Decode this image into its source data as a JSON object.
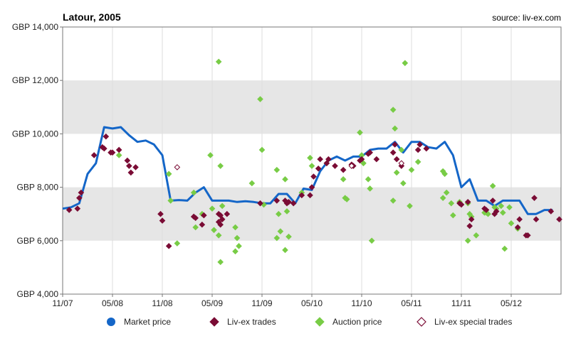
{
  "title": "Latour, 2005",
  "source": "source: liv-ex.com",
  "legend": [
    {
      "label": "Market price",
      "marker": "circle",
      "color": "#1466c8"
    },
    {
      "label": "Liv-ex trades",
      "marker": "diamond",
      "color": "#7a0c35"
    },
    {
      "label": "Auction price",
      "marker": "diamond",
      "color": "#78cc46"
    },
    {
      "label": "Liv-ex special trades",
      "marker": "diamond-outline",
      "color": "#7a0c35"
    }
  ],
  "colors": {
    "market": "#1466c8",
    "trades": "#7a0c35",
    "auction": "#78cc46",
    "special": "#7a0c35",
    "band": "#e6e6e6",
    "grid": "#dddddd",
    "axis": "#777777"
  },
  "chart_data": {
    "type": "line",
    "ylim": [
      4000,
      14000
    ],
    "xlim": [
      "2007-11",
      "2012-11"
    ],
    "x_ticks": [
      "11/07",
      "05/08",
      "11/08",
      "05/09",
      "11/09",
      "05/10",
      "11/10",
      "05/11",
      "11/11",
      "05/12"
    ],
    "y_ticks": [
      {
        "value": 4000,
        "label": "GBP 4,000"
      },
      {
        "value": 6000,
        "label": "GBP 6,000"
      },
      {
        "value": 8000,
        "label": "GBP 8,000"
      },
      {
        "value": 10000,
        "label": "GBP 10,000"
      },
      {
        "value": 12000,
        "label": "GBP 12,000"
      },
      {
        "value": 14000,
        "label": "GBP 14,000"
      }
    ],
    "bands": [
      [
        6000,
        8000
      ],
      [
        10000,
        12000
      ]
    ],
    "series": [
      {
        "name": "Market price",
        "type": "line",
        "points": [
          [
            "2007-11",
            7200
          ],
          [
            "2007-12",
            7250
          ],
          [
            "2008-01",
            7400
          ],
          [
            "2008-02",
            8500
          ],
          [
            "2008-03",
            8900
          ],
          [
            "2008-04",
            10250
          ],
          [
            "2008-05",
            10200
          ],
          [
            "2008-06",
            10250
          ],
          [
            "2008-07",
            9950
          ],
          [
            "2008-08",
            9700
          ],
          [
            "2008-09",
            9750
          ],
          [
            "2008-10",
            9600
          ],
          [
            "2008-11",
            9200
          ],
          [
            "2008-12",
            7500
          ],
          [
            "2009-01",
            7520
          ],
          [
            "2009-02",
            7500
          ],
          [
            "2009-03",
            7800
          ],
          [
            "2009-04",
            8000
          ],
          [
            "2009-05",
            7500
          ],
          [
            "2009-06",
            7500
          ],
          [
            "2009-07",
            7500
          ],
          [
            "2009-08",
            7450
          ],
          [
            "2009-09",
            7480
          ],
          [
            "2009-10",
            7450
          ],
          [
            "2009-11",
            7400
          ],
          [
            "2009-12",
            7400
          ],
          [
            "2010-01",
            7750
          ],
          [
            "2010-02",
            7750
          ],
          [
            "2010-03",
            7400
          ],
          [
            "2010-04",
            7950
          ],
          [
            "2010-05",
            7900
          ],
          [
            "2010-06",
            8600
          ],
          [
            "2010-07",
            9000
          ],
          [
            "2010-08",
            9150
          ],
          [
            "2010-09",
            9000
          ],
          [
            "2010-10",
            9150
          ],
          [
            "2010-11",
            9150
          ],
          [
            "2010-12",
            9400
          ],
          [
            "2011-01",
            9450
          ],
          [
            "2011-02",
            9450
          ],
          [
            "2011-03",
            9700
          ],
          [
            "2011-04",
            9300
          ],
          [
            "2011-05",
            9700
          ],
          [
            "2011-06",
            9700
          ],
          [
            "2011-07",
            9500
          ],
          [
            "2011-08",
            9450
          ],
          [
            "2011-09",
            9700
          ],
          [
            "2011-10",
            9200
          ],
          [
            "2011-11",
            8000
          ],
          [
            "2011-12",
            8300
          ],
          [
            "2012-01",
            7500
          ],
          [
            "2012-02",
            7500
          ],
          [
            "2012-03",
            7300
          ],
          [
            "2012-04",
            7500
          ],
          [
            "2012-05",
            7500
          ],
          [
            "2012-06",
            7500
          ],
          [
            "2012-07",
            7000
          ],
          [
            "2012-08",
            7000
          ],
          [
            "2012-09",
            7150
          ],
          [
            "2012-10",
            7150
          ]
        ]
      },
      {
        "name": "Liv-ex trades",
        "type": "scatter",
        "points": [
          [
            "2007-12",
            7150
          ],
          [
            "2008-01",
            7200
          ],
          [
            "2008-01",
            7600
          ],
          [
            "2008-01",
            7800
          ],
          [
            "2008-03",
            9200
          ],
          [
            "2008-04",
            9500
          ],
          [
            "2008-04",
            9450
          ],
          [
            "2008-04",
            9900
          ],
          [
            "2008-05",
            9300
          ],
          [
            "2008-05",
            9300
          ],
          [
            "2008-06",
            9400
          ],
          [
            "2008-07",
            9000
          ],
          [
            "2008-07",
            8800
          ],
          [
            "2008-07",
            8550
          ],
          [
            "2008-08",
            8750
          ],
          [
            "2008-11",
            7000
          ],
          [
            "2008-11",
            6750
          ],
          [
            "2008-12",
            5800
          ],
          [
            "2009-03",
            6900
          ],
          [
            "2009-03",
            6850
          ],
          [
            "2009-04",
            6600
          ],
          [
            "2009-04",
            6950
          ],
          [
            "2009-06",
            7000
          ],
          [
            "2009-06",
            6950
          ],
          [
            "2009-06",
            6800
          ],
          [
            "2009-06",
            6700
          ],
          [
            "2009-06",
            6600
          ],
          [
            "2009-07",
            7000
          ],
          [
            "2009-11",
            7400
          ],
          [
            "2010-01",
            7500
          ],
          [
            "2010-02",
            7500
          ],
          [
            "2010-02",
            7400
          ],
          [
            "2010-02",
            7450
          ],
          [
            "2010-03",
            7400
          ],
          [
            "2010-04",
            7700
          ],
          [
            "2010-05",
            7700
          ],
          [
            "2010-05",
            8000
          ],
          [
            "2010-05",
            8400
          ],
          [
            "2010-06",
            8700
          ],
          [
            "2010-06",
            9050
          ],
          [
            "2010-07",
            8900
          ],
          [
            "2010-07",
            9050
          ],
          [
            "2010-08",
            8800
          ],
          [
            "2010-09",
            8650
          ],
          [
            "2010-10",
            8850
          ],
          [
            "2010-10",
            8800
          ],
          [
            "2010-11",
            9000
          ],
          [
            "2010-11",
            9050
          ],
          [
            "2010-12",
            9250
          ],
          [
            "2010-12",
            9300
          ],
          [
            "2011-01",
            9050
          ],
          [
            "2011-03",
            9300
          ],
          [
            "2011-03",
            9600
          ],
          [
            "2011-03",
            9050
          ],
          [
            "2011-04",
            8800
          ],
          [
            "2011-06",
            9400
          ],
          [
            "2011-06",
            9600
          ],
          [
            "2011-07",
            9450
          ],
          [
            "2011-11",
            7400
          ],
          [
            "2011-11",
            7350
          ],
          [
            "2011-12",
            7450
          ],
          [
            "2011-12",
            6550
          ],
          [
            "2011-12",
            6800
          ],
          [
            "2012-02",
            7200
          ],
          [
            "2012-02",
            7150
          ],
          [
            "2012-03",
            7500
          ],
          [
            "2012-03",
            7000
          ],
          [
            "2012-03",
            7100
          ],
          [
            "2012-06",
            6500
          ],
          [
            "2012-06",
            6800
          ],
          [
            "2012-07",
            6200
          ],
          [
            "2012-07",
            6200
          ],
          [
            "2012-08",
            7600
          ],
          [
            "2012-08",
            6800
          ],
          [
            "2012-10",
            7100
          ],
          [
            "2012-11",
            6800
          ]
        ]
      },
      {
        "name": "Auction price",
        "type": "scatter",
        "points": [
          [
            "2008-06",
            9200
          ],
          [
            "2008-12",
            8500
          ],
          [
            "2008-12",
            7500
          ],
          [
            "2009-01",
            5900
          ],
          [
            "2009-03",
            7800
          ],
          [
            "2009-03",
            6500
          ],
          [
            "2009-04",
            7000
          ],
          [
            "2009-05",
            9200
          ],
          [
            "2009-05",
            7200
          ],
          [
            "2009-05",
            6400
          ],
          [
            "2009-06",
            12700
          ],
          [
            "2009-06",
            8800
          ],
          [
            "2009-06",
            7300
          ],
          [
            "2009-06",
            6200
          ],
          [
            "2009-06",
            5200
          ],
          [
            "2009-08",
            6500
          ],
          [
            "2009-08",
            6100
          ],
          [
            "2009-08",
            5800
          ],
          [
            "2009-08",
            5600
          ],
          [
            "2009-10",
            8150
          ],
          [
            "2009-11",
            11300
          ],
          [
            "2009-11",
            9400
          ],
          [
            "2009-11",
            7350
          ],
          [
            "2010-01",
            8650
          ],
          [
            "2010-01",
            7000
          ],
          [
            "2010-01",
            6350
          ],
          [
            "2010-01",
            6100
          ],
          [
            "2010-02",
            8300
          ],
          [
            "2010-02",
            7100
          ],
          [
            "2010-02",
            6150
          ],
          [
            "2010-02",
            5650
          ],
          [
            "2010-04",
            7800
          ],
          [
            "2010-05",
            9100
          ],
          [
            "2010-05",
            8800
          ],
          [
            "2010-07",
            8900
          ],
          [
            "2010-09",
            8300
          ],
          [
            "2010-09",
            7600
          ],
          [
            "2010-09",
            7550
          ],
          [
            "2010-11",
            10050
          ],
          [
            "2010-11",
            9200
          ],
          [
            "2010-11",
            8900
          ],
          [
            "2010-12",
            8300
          ],
          [
            "2010-12",
            7950
          ],
          [
            "2010-12",
            6000
          ],
          [
            "2011-03",
            10900
          ],
          [
            "2011-03",
            10200
          ],
          [
            "2011-03",
            8550
          ],
          [
            "2011-03",
            7500
          ],
          [
            "2011-04",
            9400
          ],
          [
            "2011-04",
            8150
          ],
          [
            "2011-04",
            12650
          ],
          [
            "2011-05",
            7300
          ],
          [
            "2011-05",
            8650
          ],
          [
            "2011-06",
            8950
          ],
          [
            "2011-09",
            8600
          ],
          [
            "2011-09",
            8500
          ],
          [
            "2011-09",
            7800
          ],
          [
            "2011-09",
            7600
          ],
          [
            "2011-10",
            7400
          ],
          [
            "2011-10",
            6950
          ],
          [
            "2011-11",
            7450
          ],
          [
            "2011-12",
            7400
          ],
          [
            "2011-12",
            7000
          ],
          [
            "2011-12",
            6900
          ],
          [
            "2011-12",
            6000
          ],
          [
            "2012-01",
            6200
          ],
          [
            "2012-02",
            7050
          ],
          [
            "2012-02",
            7050
          ],
          [
            "2012-02",
            7000
          ],
          [
            "2012-03",
            8050
          ],
          [
            "2012-03",
            7250
          ],
          [
            "2012-03",
            7200
          ],
          [
            "2012-04",
            7300
          ],
          [
            "2012-04",
            7050
          ],
          [
            "2012-04",
            5700
          ],
          [
            "2012-05",
            7250
          ],
          [
            "2012-05",
            6650
          ],
          [
            "2012-06",
            6450
          ]
        ]
      },
      {
        "name": "Liv-ex special trades",
        "type": "scatter",
        "points": [
          [
            "2009-01",
            8750
          ],
          [
            "2010-10",
            8800
          ],
          [
            "2011-04",
            8900
          ]
        ]
      }
    ]
  }
}
